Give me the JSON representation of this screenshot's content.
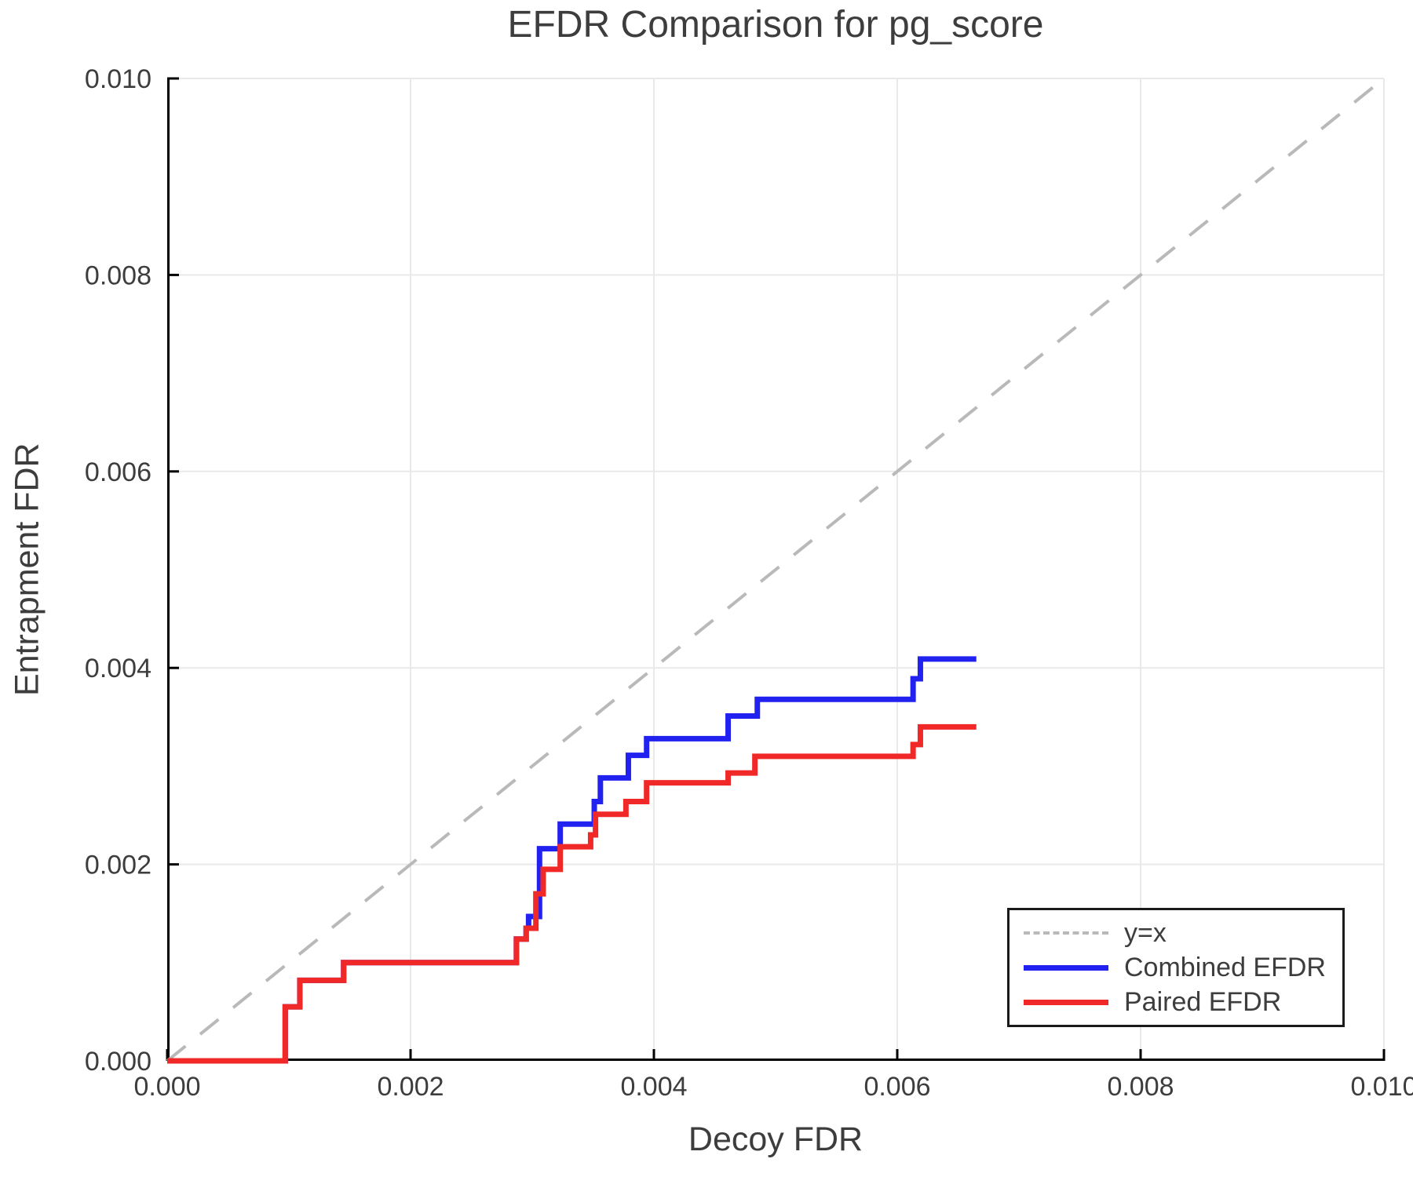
{
  "figure": {
    "title": "EFDR Comparison for pg_score",
    "xlabel": "Decoy FDR",
    "ylabel": "Entrapment FDR"
  },
  "colors": {
    "combined_efdr": "#2222f0",
    "paired_efdr": "#f02828",
    "identity_line": "#b9b9b9",
    "grid": "#e9e9e9",
    "axis": "#000000",
    "text": "#3d3d3d",
    "legend_border": "#1a1a1a"
  },
  "chart_data": {
    "type": "line",
    "title": "EFDR Comparison for pg_score",
    "xlabel": "Decoy FDR",
    "ylabel": "Entrapment FDR",
    "xlim": [
      0,
      0.01
    ],
    "ylim": [
      0,
      0.01
    ],
    "grid": true,
    "legend_position": "lower right",
    "x_ticks": {
      "values": [
        0,
        0.002,
        0.004,
        0.006,
        0.008,
        0.01
      ],
      "labels": [
        "0.000",
        "0.002",
        "0.004",
        "0.006",
        "0.008",
        "0.010"
      ]
    },
    "y_ticks": {
      "values": [
        0,
        0.002,
        0.004,
        0.006,
        0.008,
        0.01
      ],
      "labels": [
        "0.000",
        "0.002",
        "0.004",
        "0.006",
        "0.008",
        "0.010"
      ]
    },
    "series": [
      {
        "name": "y=x",
        "mode": "line",
        "dash": true,
        "color": "#b9b9b9",
        "x": [
          0,
          0.01
        ],
        "y": [
          0,
          0.01
        ]
      },
      {
        "name": "Combined EFDR",
        "mode": "step",
        "dash": false,
        "color": "#2222f0",
        "start": [
          0,
          0
        ],
        "points": [
          [
            0.00097,
            0.00055
          ],
          [
            0.00109,
            0.00082
          ],
          [
            0.00145,
            0.001
          ],
          [
            0.00287,
            0.00124
          ],
          [
            0.00295,
            0.00135
          ],
          [
            0.00297,
            0.00147
          ],
          [
            0.00306,
            0.00216
          ],
          [
            0.00323,
            0.00241
          ],
          [
            0.00351,
            0.00264
          ],
          [
            0.00356,
            0.00288
          ],
          [
            0.00379,
            0.00311
          ],
          [
            0.00394,
            0.00328
          ],
          [
            0.00461,
            0.00351
          ],
          [
            0.00485,
            0.00368
          ],
          [
            0.00613,
            0.00389
          ],
          [
            0.00619,
            0.00409
          ]
        ],
        "end_x": 0.00665
      },
      {
        "name": "Paired EFDR",
        "mode": "step",
        "dash": false,
        "color": "#f02828",
        "start": [
          0,
          0
        ],
        "points": [
          [
            0.00097,
            0.00055
          ],
          [
            0.00109,
            0.00082
          ],
          [
            0.00145,
            0.001
          ],
          [
            0.00287,
            0.00124
          ],
          [
            0.00295,
            0.00135
          ],
          [
            0.00303,
            0.0017
          ],
          [
            0.00309,
            0.00195
          ],
          [
            0.00323,
            0.00218
          ],
          [
            0.00348,
            0.0023
          ],
          [
            0.00352,
            0.00251
          ],
          [
            0.00377,
            0.00264
          ],
          [
            0.00394,
            0.00283
          ],
          [
            0.00461,
            0.00293
          ],
          [
            0.00483,
            0.0031
          ],
          [
            0.00613,
            0.00322
          ],
          [
            0.00619,
            0.0034
          ]
        ],
        "end_x": 0.00665
      }
    ]
  },
  "legend": {
    "items": [
      {
        "label": "y=x"
      },
      {
        "label": "Combined EFDR"
      },
      {
        "label": "Paired EFDR"
      }
    ]
  }
}
